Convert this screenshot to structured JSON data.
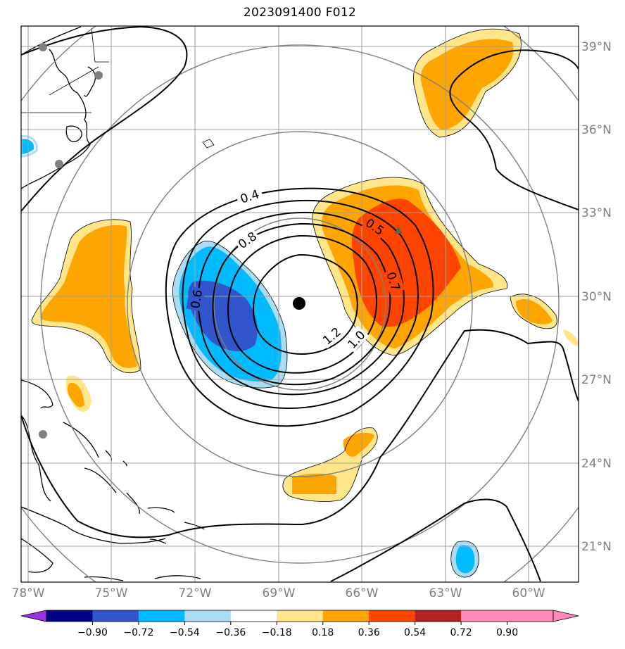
{
  "title": "2023091400 F012",
  "axes": {
    "lon_ticks": [
      "78°W",
      "75°W",
      "72°W",
      "69°W",
      "66°W",
      "63°W",
      "60°W"
    ],
    "lat_ticks": [
      "39°N",
      "36°N",
      "33°N",
      "30°N",
      "27°N",
      "24°N",
      "21°N"
    ]
  },
  "colorbar": {
    "ticks": [
      "−0.90",
      "−0.72",
      "−0.54",
      "−0.36",
      "−0.18",
      "0.18",
      "0.36",
      "0.54",
      "0.72",
      "0.90"
    ],
    "colors": [
      "#9933dd",
      "#000088",
      "#3355cc",
      "#00bbff",
      "#aaddf5",
      "#ffffff",
      "#ffe68a",
      "#ffa500",
      "#ff4400",
      "#b22222",
      "#ff88bb",
      "#ff88bb"
    ]
  },
  "contour_labels": [
    "0.4",
    "0.5",
    "0.6",
    "0.7",
    "0.8",
    "1.0",
    "1.2"
  ],
  "colors": {
    "grid": "#a0a0a0",
    "range_rings": "#808080",
    "tick_label": "#808080",
    "storm_center": "#000000",
    "station_dot": "#808080"
  }
}
